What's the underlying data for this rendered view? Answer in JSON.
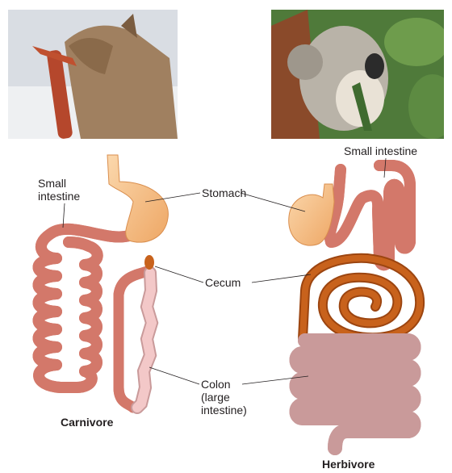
{
  "photos": {
    "left": {
      "icon": "coyote-eating-photo"
    },
    "right": {
      "icon": "koala-eating-photo"
    }
  },
  "labels": {
    "small_intestine_left": [
      "Small",
      "intestine"
    ],
    "small_intestine_right": "Small intestine",
    "stomach": "Stomach",
    "cecum": "Cecum",
    "colon": [
      "Colon",
      "(large",
      "intestine)"
    ],
    "carnivore": "Carnivore",
    "herbivore": "Herbivore"
  },
  "colors": {
    "intestine": "#f0a994",
    "intestine_outline": "#d3786a",
    "stomach": "#f6c089",
    "cecum": "#c8621c",
    "colon": "#f3c8c8"
  }
}
